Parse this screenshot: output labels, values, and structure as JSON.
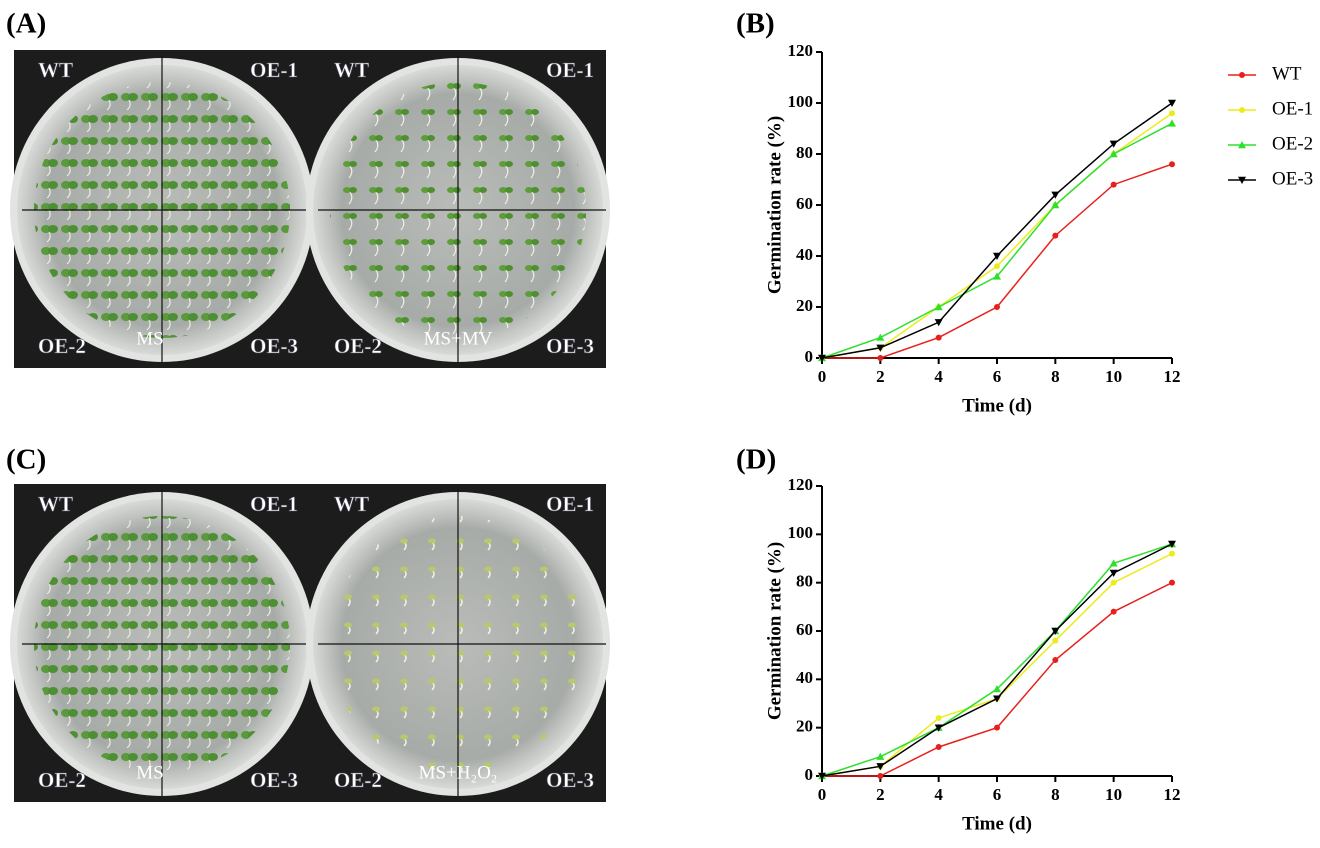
{
  "panel_labels": [
    "(A)",
    "(B)",
    "(C)",
    "(D)"
  ],
  "photos": [
    {
      "plates": [
        {
          "quadrants": [
            "WT",
            "OE-1",
            "OE-2",
            "OE-3"
          ],
          "medium": "MS"
        },
        {
          "quadrants": [
            "WT",
            "OE-1",
            "OE-2",
            "OE-3"
          ],
          "medium": "MS+MV"
        }
      ]
    },
    {
      "plates": [
        {
          "quadrants": [
            "WT",
            "OE-1",
            "OE-2",
            "OE-3"
          ],
          "medium": "MS"
        },
        {
          "quadrants": [
            "WT",
            "OE-1",
            "OE-2",
            "OE-3"
          ],
          "medium": "MS+H₂O₂"
        }
      ]
    }
  ],
  "chart_data": [
    {
      "type": "line",
      "x_label": "Time (d)",
      "y_label": "Germination rate (%)",
      "x": [
        0,
        2,
        4,
        6,
        8,
        10,
        12
      ],
      "xlim": [
        0,
        12
      ],
      "xticks": [
        0,
        2,
        4,
        6,
        8,
        10,
        12
      ],
      "ylim": [
        0,
        120
      ],
      "yticks": [
        0,
        20,
        40,
        60,
        80,
        100,
        120
      ],
      "legend": "right",
      "series": [
        {
          "name": "WT",
          "color": "#e8201c",
          "marker": "circle",
          "values": [
            0,
            0,
            8,
            20,
            48,
            68,
            76
          ]
        },
        {
          "name": "OE-1",
          "color": "#ecec1c",
          "marker": "circle",
          "values": [
            0,
            4,
            20,
            36,
            60,
            80,
            96
          ]
        },
        {
          "name": "OE-2",
          "color": "#2ee02e",
          "marker": "triangle-up",
          "values": [
            0,
            8,
            20,
            32,
            60,
            80,
            92
          ]
        },
        {
          "name": "OE-3",
          "color": "#000000",
          "marker": "triangle-down",
          "values": [
            0,
            4,
            14,
            40,
            64,
            84,
            100
          ]
        }
      ]
    },
    {
      "type": "line",
      "x_label": "Time (d)",
      "y_label": "Germination rate (%)",
      "x": [
        0,
        2,
        4,
        6,
        8,
        10,
        12
      ],
      "xlim": [
        0,
        12
      ],
      "xticks": [
        0,
        2,
        4,
        6,
        8,
        10,
        12
      ],
      "ylim": [
        0,
        120
      ],
      "yticks": [
        0,
        20,
        40,
        60,
        80,
        100,
        120
      ],
      "series": [
        {
          "color": "#e8201c",
          "marker": "circle",
          "values": [
            0,
            0,
            12,
            20,
            48,
            68,
            80
          ]
        },
        {
          "color": "#ecec1c",
          "marker": "circle",
          "values": [
            0,
            4,
            24,
            32,
            56,
            80,
            92
          ]
        },
        {
          "color": "#2ee02e",
          "marker": "triangle-up",
          "values": [
            0,
            8,
            20,
            36,
            60,
            88,
            96
          ]
        },
        {
          "color": "#000000",
          "marker": "triangle-down",
          "values": [
            0,
            4,
            20,
            32,
            60,
            84,
            96
          ]
        }
      ]
    }
  ]
}
